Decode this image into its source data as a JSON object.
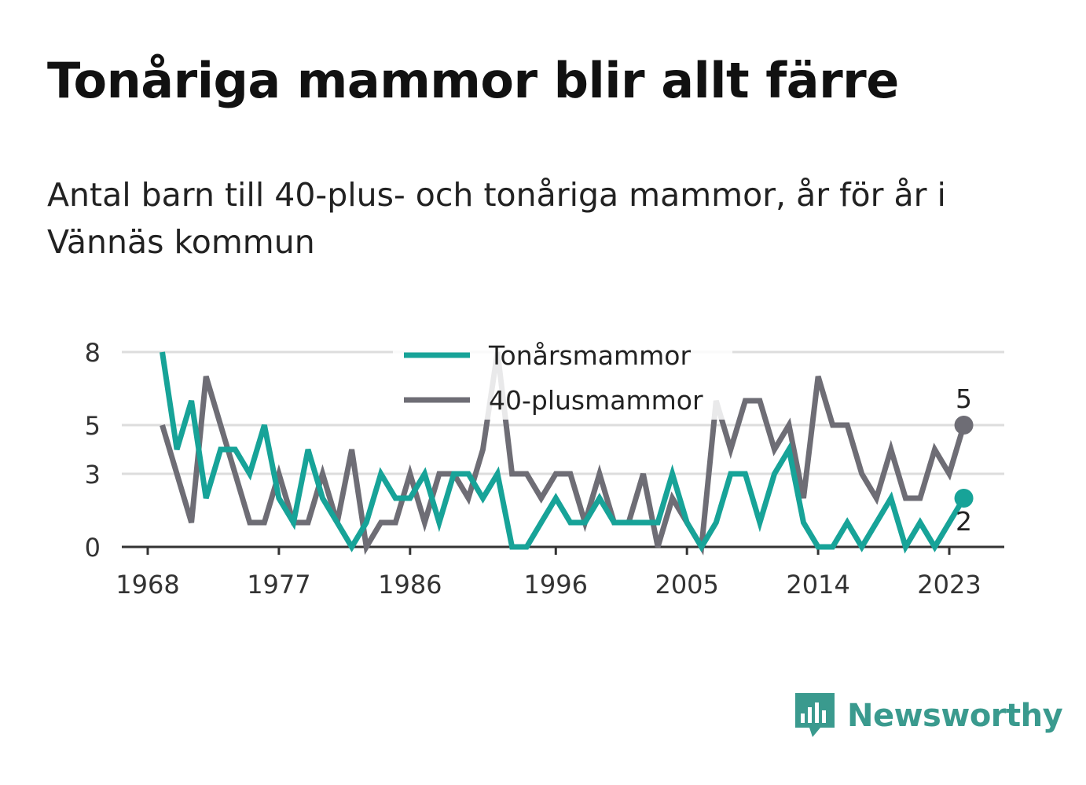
{
  "title": "Tonåriga mammor blir allt färre",
  "subtitle": "Antal barn till 40-plus- och tonåriga mammor, år för år i Vännäs kommun",
  "brand": {
    "name": "Newsworthy",
    "color": "#3a9a8e",
    "icon": "newsworthy-chart-icon"
  },
  "chart_data": {
    "type": "line",
    "xlim": [
      1967,
      2027
    ],
    "ylim": [
      0,
      8
    ],
    "y_ticks": [
      0,
      3,
      5,
      8
    ],
    "x_ticks": [
      1968,
      1977,
      1986,
      1996,
      2005,
      2014,
      2023
    ],
    "grid": true,
    "legend_position": "top-center",
    "x": [
      1969,
      1970,
      1971,
      1972,
      1973,
      1974,
      1975,
      1976,
      1977,
      1978,
      1979,
      1980,
      1981,
      1982,
      1983,
      1984,
      1985,
      1986,
      1987,
      1988,
      1989,
      1990,
      1991,
      1992,
      1993,
      1994,
      1995,
      1996,
      1997,
      1998,
      1999,
      2000,
      2001,
      2002,
      2003,
      2004,
      2005,
      2006,
      2007,
      2008,
      2009,
      2010,
      2011,
      2012,
      2013,
      2014,
      2015,
      2016,
      2017,
      2018,
      2019,
      2020,
      2021,
      2022,
      2023,
      2024
    ],
    "series": [
      {
        "name": "Tonårsmammor",
        "color": "#17a398",
        "values": [
          8,
          4,
          6,
          2,
          4,
          4,
          3,
          5,
          2,
          1,
          4,
          2,
          1,
          0,
          1,
          3,
          2,
          2,
          3,
          1,
          3,
          3,
          2,
          3,
          0,
          0,
          1,
          2,
          1,
          1,
          2,
          1,
          1,
          1,
          1,
          3,
          1,
          0,
          1,
          3,
          3,
          1,
          3,
          4,
          1,
          0,
          0,
          1,
          0,
          1,
          2,
          0,
          1,
          0,
          1,
          2
        ],
        "end_label": "2"
      },
      {
        "name": "40-plusmammor",
        "color": "#6e6d75",
        "values": [
          5,
          3,
          1,
          7,
          5,
          3,
          1,
          1,
          3,
          1,
          1,
          3,
          1,
          4,
          0,
          1,
          1,
          3,
          1,
          3,
          3,
          2,
          4,
          8,
          3,
          3,
          2,
          3,
          3,
          1,
          3,
          1,
          1,
          3,
          0,
          2,
          1,
          0,
          6,
          4,
          6,
          6,
          4,
          5,
          2,
          7,
          5,
          5,
          3,
          2,
          4,
          2,
          2,
          4,
          3,
          5
        ],
        "end_label": "5"
      }
    ]
  }
}
